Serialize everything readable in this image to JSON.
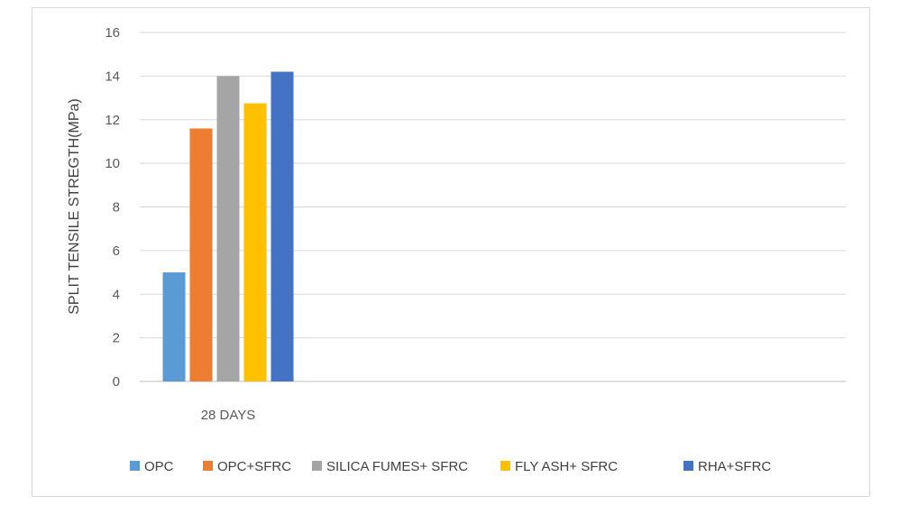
{
  "chart_data": {
    "type": "bar",
    "title": "",
    "xlabel": "",
    "ylabel": "SPLIT TENSILE STREGTH(MPa)",
    "categories": [
      "28 DAYS"
    ],
    "ylim": [
      0,
      16
    ],
    "yticks": [
      0,
      2,
      4,
      6,
      8,
      10,
      12,
      14,
      16
    ],
    "grid": true,
    "legend_position": "bottom",
    "series": [
      {
        "name": "OPC",
        "values": [
          5.0
        ],
        "color": "#5b9bd5"
      },
      {
        "name": "OPC+SFRC",
        "values": [
          11.6
        ],
        "color": "#ed7d31"
      },
      {
        "name": "SILICA FUMES+ SFRC",
        "values": [
          14.0
        ],
        "color": "#a5a5a5"
      },
      {
        "name": "FLY ASH+ SFRC",
        "values": [
          12.75
        ],
        "color": "#ffc000"
      },
      {
        "name": "RHA+SFRC",
        "values": [
          14.2
        ],
        "color": "#4472c4"
      }
    ]
  }
}
